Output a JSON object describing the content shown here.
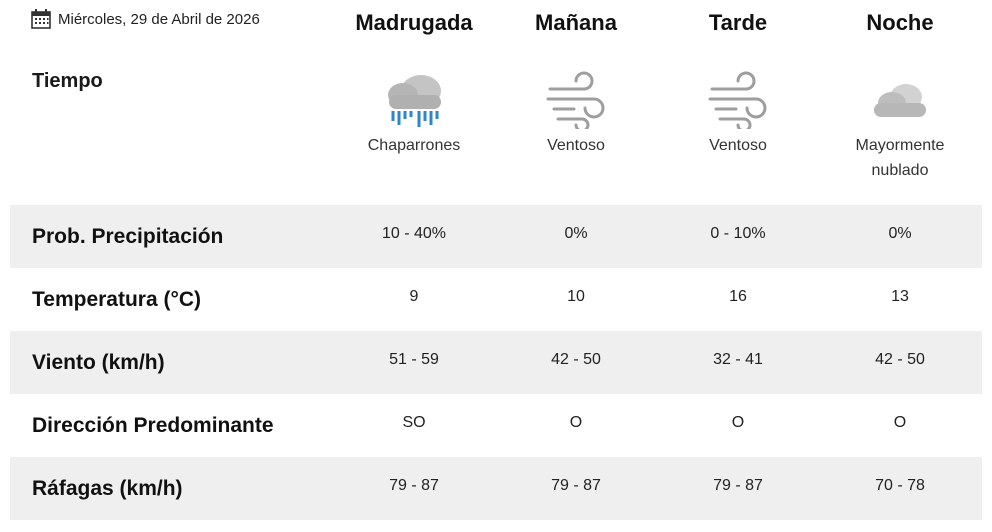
{
  "header": {
    "date": "Miércoles, 29 de Abril de 2026",
    "calendar_icon": "calendar-icon",
    "periods": [
      "Madrugada",
      "Mañana",
      "Tarde",
      "Noche"
    ]
  },
  "tiempo": {
    "label": "Tiempo",
    "conditions": [
      {
        "icon": "rain-showers-icon",
        "text": "Chaparrones"
      },
      {
        "icon": "wind-icon",
        "text": "Ventoso"
      },
      {
        "icon": "wind-icon",
        "text": "Ventoso"
      },
      {
        "icon": "cloudy-icon",
        "text": "Mayormente nublado"
      }
    ]
  },
  "rows": [
    {
      "label": "Prob. Precipitación",
      "values": [
        "10 - 40%",
        "0%",
        "0 - 10%",
        "0%"
      ]
    },
    {
      "label": "Temperatura (°C)",
      "values": [
        "9",
        "10",
        "16",
        "13"
      ]
    },
    {
      "label": "Viento (km/h)",
      "values": [
        "51 - 59",
        "42 - 50",
        "32 - 41",
        "42 - 50"
      ]
    },
    {
      "label": "Dirección Predominante",
      "values": [
        "SO",
        "O",
        "O",
        "O"
      ]
    },
    {
      "label": "Ráfagas (km/h)",
      "values": [
        "79 - 87",
        "79 - 87",
        "79 - 87",
        "70 - 78"
      ]
    }
  ],
  "colors": {
    "row_shade": "#efefef",
    "rain_blue": "#2f86c9",
    "cloud_gray": "#b7b7b7"
  }
}
